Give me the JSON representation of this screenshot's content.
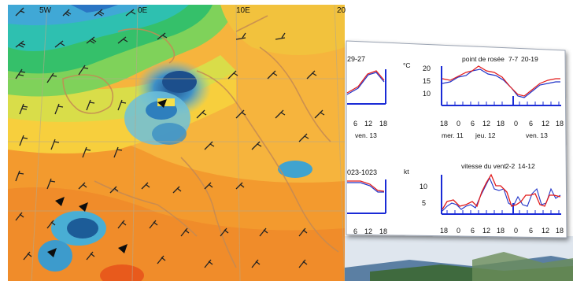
{
  "map": {
    "lon_labels": [
      "5W",
      "0E",
      "10E",
      "20"
    ]
  },
  "panel": {
    "top_left": {
      "title_partial": "29-27",
      "x_ticks": [
        "6",
        "12",
        "18"
      ],
      "day_label": "ven. 13"
    },
    "dewpoint": {
      "title": "point de rosée",
      "title_dark": "7-7",
      "title_red": "20-19",
      "unit": "°C",
      "y_ticks": [
        "20",
        "15",
        "10"
      ],
      "x_ticks": [
        "18",
        "0",
        "6",
        "12",
        "18",
        "0",
        "6",
        "12",
        "18"
      ],
      "day_labels": [
        "mer. 11",
        "jeu. 12",
        "ven. 13"
      ]
    },
    "bottom_left": {
      "title_partial": "023-1023",
      "x_ticks": [
        "6",
        "12",
        "18"
      ]
    },
    "wind": {
      "title": "vitesse du vent",
      "title_dark": "2-2",
      "title_red": "14-12",
      "unit": "kt",
      "y_ticks": [
        "10",
        "5"
      ],
      "x_ticks": [
        "18",
        "0",
        "6",
        "12",
        "18",
        "0",
        "6",
        "12",
        "18"
      ]
    }
  },
  "colors": {
    "red": "#e21b1b",
    "blue": "#2234c8",
    "axis_blue": "#1a2bd6"
  }
}
